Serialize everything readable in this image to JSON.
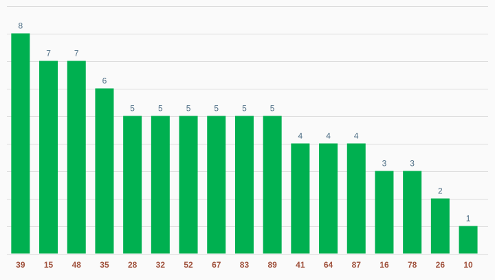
{
  "colors": {
    "bar": "#00b050",
    "value_label": "#4f6f86",
    "category_label": "#a0523d",
    "grid": "#dcdcdc",
    "background": "#fafafa"
  },
  "chart_data": {
    "type": "bar",
    "title": "",
    "xlabel": "",
    "ylabel": "",
    "categories": [
      "39",
      "15",
      "48",
      "35",
      "28",
      "32",
      "52",
      "67",
      "83",
      "89",
      "41",
      "64",
      "87",
      "16",
      "78",
      "26",
      "10"
    ],
    "values": [
      8,
      7,
      7,
      6,
      5,
      5,
      5,
      5,
      5,
      5,
      4,
      4,
      4,
      3,
      3,
      2,
      1
    ],
    "ylim": [
      0,
      9
    ],
    "grid": true,
    "legend": "none",
    "data_labels": true
  }
}
